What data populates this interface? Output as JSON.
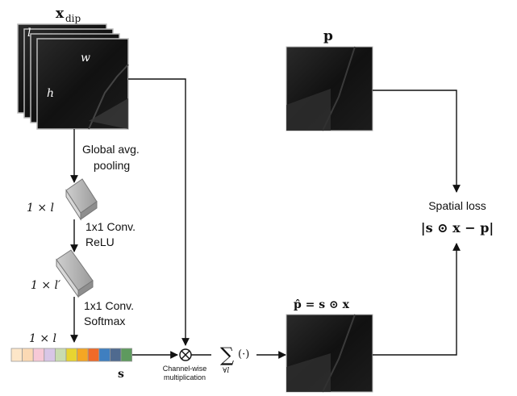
{
  "labels": {
    "x_dip": "x",
    "x_dip_sub": "dip",
    "dim_l": "l",
    "dim_w": "w",
    "dim_h": "h",
    "p_title": "p",
    "global_pool_1": "Global avg.",
    "global_pool_2": "pooling",
    "size_1xl": "1 × l",
    "conv1_1": "1x1 Conv.",
    "conv1_2": "ReLU",
    "size_1xlp": "1 × l′",
    "conv2_1": "1x1 Conv.",
    "conv2_2": "Softmax",
    "size_1xl_2": "1 × l",
    "s_label": "s",
    "channel_mult_1": "Channel-wise",
    "channel_mult_2": "multiplication",
    "sum_symbol": "∑",
    "sum_sub": "∀l",
    "sum_arg": "(·)",
    "phat_eq": "p̂ = s ⊙ x",
    "spatial_loss": "Spatial loss",
    "loss_formula": "|s ⊙ x − p|"
  },
  "colors": {
    "weight_cells": [
      "#fde6c8",
      "#fbd9b4",
      "#f7c9d6",
      "#d8c6e6",
      "#c9dcb0",
      "#e8d431",
      "#f5a623",
      "#f06a28",
      "#3f7fc0",
      "#4f6a8f",
      "#5e9a5e"
    ]
  },
  "icons": {
    "multiply": "circled-times-icon",
    "arrow": "arrow-head"
  }
}
